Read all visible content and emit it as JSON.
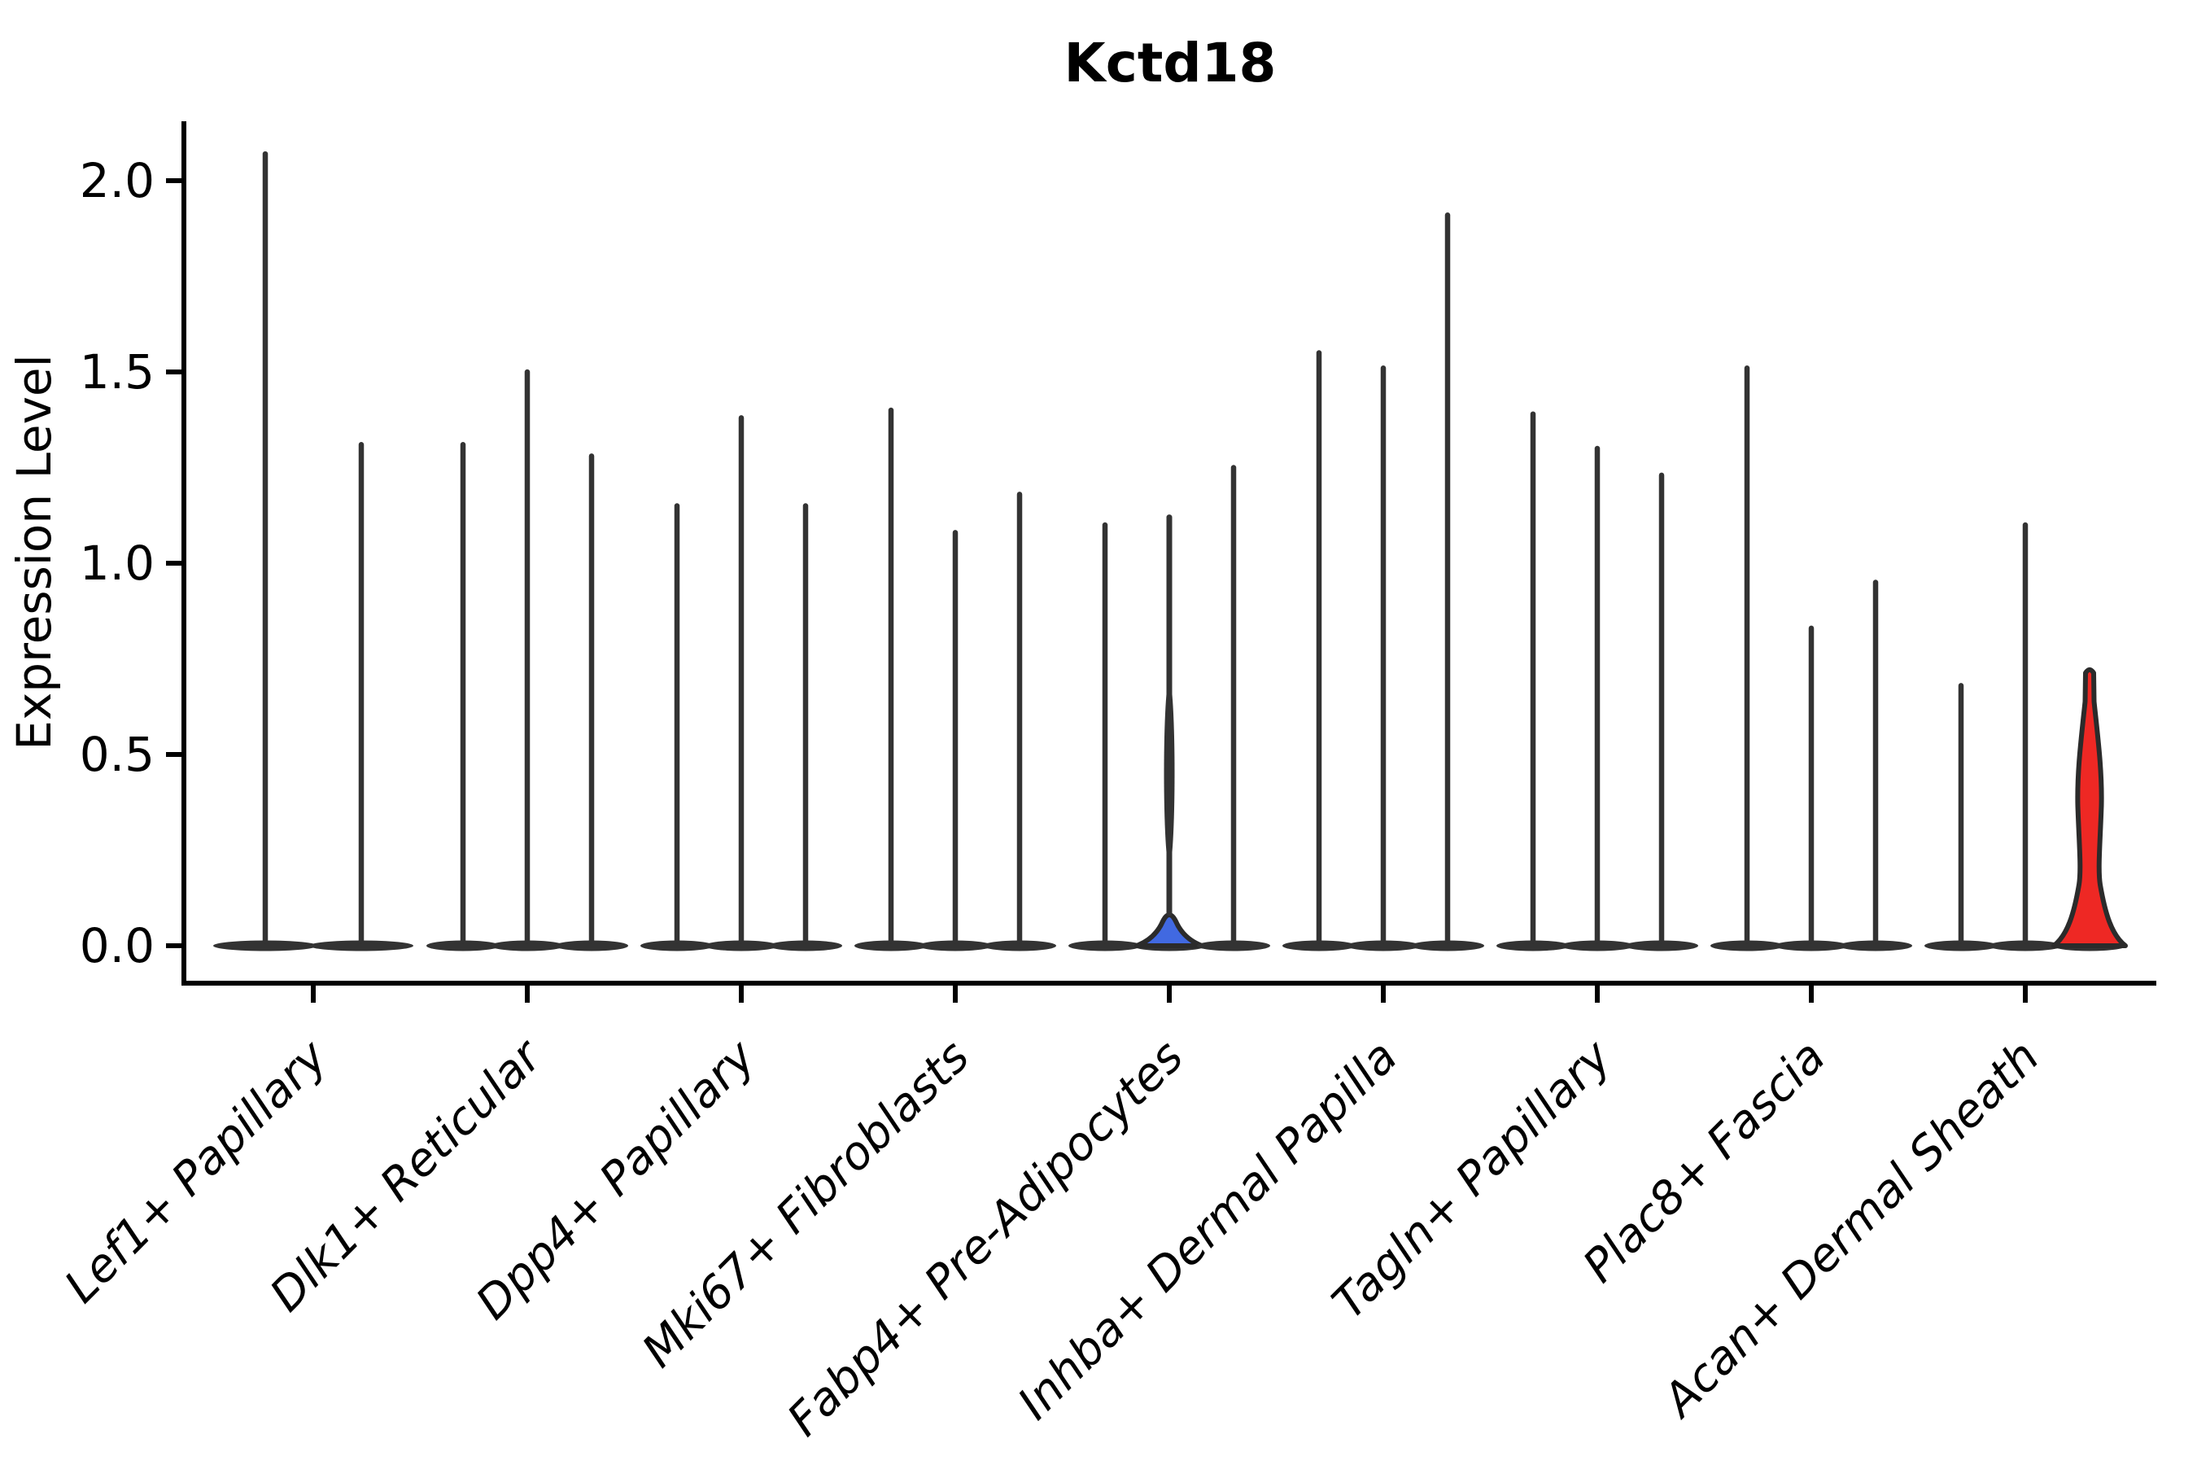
{
  "colors": {
    "axis": "#000000",
    "violin_edge": "#333333",
    "highlight_blue": "#4169e1",
    "highlight_red": "#ee2824"
  },
  "chart_data": {
    "type": "violin",
    "title": "Kctd18",
    "xlabel": "",
    "ylabel": "Expression Level",
    "yticks": [
      0.0,
      0.5,
      1.0,
      1.5,
      2.0
    ],
    "ylim": [
      -0.1,
      2.15
    ],
    "grid": false,
    "legend": "none",
    "description": "Stacked violin plot of Kctd18 expression; each cell-type group contains thin violins (one per sample). One violin in Fabp4+ Pre-Adipocytes is filled blue; one violin in Acan+ Dermal Sheath is filled red.",
    "categories": [
      "Lef1+ Papillary",
      "Dlk1+ Reticular",
      "Dpp4+ Papillary",
      "Mki67+ Fibroblasts",
      "Fabp4+ Pre-Adipocytes",
      "Inhba+ Dermal Papilla",
      "Tagln+ Papillary",
      "Plac8+ Fascia",
      "Acan+ Dermal Sheath"
    ],
    "groups": [
      {
        "label": "Lef1+ Papillary",
        "violins": [
          {
            "max": 2.07
          },
          {
            "max": 1.31
          }
        ]
      },
      {
        "label": "Dlk1+ Reticular",
        "violins": [
          {
            "max": 1.31
          },
          {
            "max": 1.5
          },
          {
            "max": 1.28
          }
        ]
      },
      {
        "label": "Dpp4+ Papillary",
        "violins": [
          {
            "max": 1.15
          },
          {
            "max": 1.38
          },
          {
            "max": 1.15
          }
        ]
      },
      {
        "label": "Mki67+ Fibroblasts",
        "violins": [
          {
            "max": 1.4
          },
          {
            "max": 1.08
          },
          {
            "max": 1.18
          }
        ]
      },
      {
        "label": "Fabp4+ Pre-Adipocytes",
        "violins": [
          {
            "max": 1.1
          },
          {
            "max": 1.12,
            "highlight": "blue",
            "base_bulge_height": 0.08
          },
          {
            "max": 1.25
          }
        ]
      },
      {
        "label": "Inhba+ Dermal Papilla",
        "violins": [
          {
            "max": 1.55
          },
          {
            "max": 1.51
          },
          {
            "max": 1.91
          }
        ]
      },
      {
        "label": "Tagln+ Papillary",
        "violins": [
          {
            "max": 1.39
          },
          {
            "max": 1.3
          },
          {
            "max": 1.23
          }
        ]
      },
      {
        "label": "Plac8+ Fascia",
        "violins": [
          {
            "max": 1.51
          },
          {
            "max": 0.83
          },
          {
            "max": 0.95
          }
        ]
      },
      {
        "label": "Acan+ Dermal Sheath",
        "violins": [
          {
            "max": 0.68
          },
          {
            "max": 1.1
          },
          {
            "max": 0.73,
            "highlight": "red",
            "base_bulge_height": 0.13,
            "mid_bulge": [
              0.2,
              0.55
            ]
          }
        ]
      }
    ]
  }
}
